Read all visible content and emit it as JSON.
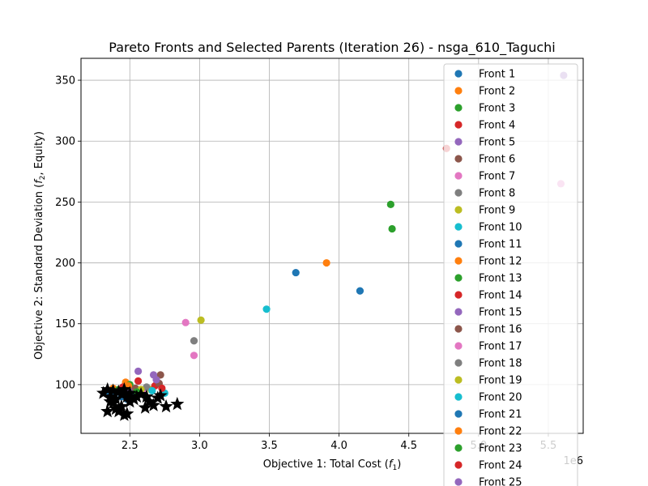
{
  "chart_data": {
    "type": "scatter",
    "title": "Pareto Fronts and Selected Parents (Iteration 26) - nsga_610_Taguchi",
    "xlabel_main": "Objective 1: Total Cost (",
    "xlabel_sym": "f",
    "xlabel_sub": "1",
    "xlabel_end": ")",
    "ylabel_main": "Objective 2: Standard Deviation (",
    "ylabel_sym": "f",
    "ylabel_sub": "2",
    "ylabel_end": ", Equity)",
    "x_offset_label": "1e6",
    "xlim": [
      2.15,
      5.75
    ],
    "ylim": [
      60,
      368
    ],
    "xticks": [
      2.5,
      3.0,
      3.5,
      4.0,
      4.5,
      5.0,
      5.5
    ],
    "xtick_labels": [
      "2.5",
      "3.0",
      "3.5",
      "4.0",
      "4.5",
      "5.0",
      "5.5"
    ],
    "yticks": [
      100,
      150,
      200,
      250,
      300,
      350
    ],
    "ytick_labels": [
      "100",
      "150",
      "200",
      "250",
      "300",
      "350"
    ],
    "grid": true,
    "legend_position": "top-right",
    "series": [
      {
        "name": "Front 1",
        "color": "#1f77b4",
        "points": [
          [
            2.33,
            95
          ],
          [
            2.36,
            92
          ],
          [
            2.4,
            94
          ],
          [
            2.44,
            90
          ],
          [
            2.48,
            88
          ]
        ]
      },
      {
        "name": "Front 2",
        "color": "#ff7f0e",
        "points": [
          [
            2.38,
            97
          ],
          [
            2.47,
            102
          ]
        ]
      },
      {
        "name": "Front 3",
        "color": "#2ca02c",
        "points": [
          [
            2.42,
            96
          ],
          [
            2.5,
            100
          ]
        ]
      },
      {
        "name": "Front 4",
        "color": "#d62728",
        "points": [
          [
            2.45,
            98
          ],
          [
            2.56,
            103
          ]
        ]
      },
      {
        "name": "Front 5",
        "color": "#9467bd",
        "points": [
          [
            2.5,
            95
          ],
          [
            2.56,
            111
          ]
        ]
      },
      {
        "name": "Front 6",
        "color": "#8c564b",
        "points": [
          [
            2.54,
            97
          ],
          [
            2.72,
            108
          ]
        ]
      },
      {
        "name": "Front 7",
        "color": "#e377c2",
        "points": [
          [
            2.6,
            94
          ],
          [
            2.9,
            151
          ]
        ]
      },
      {
        "name": "Front 8",
        "color": "#7f7f7f",
        "points": [
          [
            2.7,
            101
          ],
          [
            2.96,
            136
          ]
        ]
      },
      {
        "name": "Front 9",
        "color": "#bcbd22",
        "points": [
          [
            2.65,
            96
          ],
          [
            3.01,
            153
          ]
        ]
      },
      {
        "name": "Front 10",
        "color": "#17becf",
        "points": [
          [
            2.75,
            93
          ],
          [
            3.48,
            162
          ]
        ]
      },
      {
        "name": "Front 11",
        "color": "#1f77b4",
        "points": [
          [
            3.69,
            192
          ],
          [
            4.15,
            177
          ]
        ]
      },
      {
        "name": "Front 12",
        "color": "#ff7f0e",
        "points": [
          [
            3.91,
            200
          ]
        ]
      },
      {
        "name": "Front 13",
        "color": "#2ca02c",
        "points": [
          [
            4.37,
            248
          ],
          [
            4.38,
            228
          ]
        ]
      },
      {
        "name": "Front 14",
        "color": "#d62728",
        "points": [
          [
            2.68,
            99
          ],
          [
            4.77,
            294
          ]
        ]
      },
      {
        "name": "Front 15",
        "color": "#9467bd",
        "points": [
          [
            2.67,
            108
          ],
          [
            5.61,
            354
          ]
        ]
      },
      {
        "name": "Front 16",
        "color": "#8c564b",
        "points": [
          [
            2.71,
            101
          ]
        ]
      },
      {
        "name": "Front 17",
        "color": "#e377c2",
        "points": [
          [
            2.96,
            124
          ],
          [
            5.59,
            265
          ]
        ]
      },
      {
        "name": "Front 18",
        "color": "#7f7f7f",
        "points": [
          [
            2.62,
            98
          ]
        ]
      },
      {
        "name": "Front 19",
        "color": "#bcbd22",
        "points": [
          [
            2.58,
            96
          ]
        ]
      },
      {
        "name": "Front 20",
        "color": "#17becf",
        "points": [
          [
            2.66,
            95
          ]
        ]
      },
      {
        "name": "Front 21",
        "color": "#1f77b4",
        "points": [
          [
            2.52,
            92
          ]
        ]
      },
      {
        "name": "Front 22",
        "color": "#ff7f0e",
        "points": [
          [
            2.49,
            99
          ]
        ]
      },
      {
        "name": "Front 23",
        "color": "#2ca02c",
        "points": [
          [
            2.55,
            94
          ]
        ]
      },
      {
        "name": "Front 24",
        "color": "#d62728",
        "points": [
          [
            2.73,
            97
          ]
        ]
      },
      {
        "name": "Front 25",
        "color": "#9467bd",
        "points": [
          [
            2.69,
            104
          ]
        ]
      }
    ],
    "selected_parents": {
      "marker": "star",
      "color": "#000000",
      "points": [
        [
          2.31,
          93
        ],
        [
          2.34,
          96
        ],
        [
          2.36,
          90
        ],
        [
          2.38,
          95
        ],
        [
          2.4,
          88
        ],
        [
          2.42,
          94
        ],
        [
          2.44,
          92
        ],
        [
          2.46,
          96
        ],
        [
          2.48,
          90
        ],
        [
          2.5,
          93
        ],
        [
          2.34,
          78
        ],
        [
          2.38,
          85
        ],
        [
          2.4,
          80
        ],
        [
          2.44,
          82
        ],
        [
          2.46,
          75
        ],
        [
          2.48,
          76
        ],
        [
          2.55,
          90
        ],
        [
          2.58,
          92
        ],
        [
          2.61,
          81
        ],
        [
          2.64,
          86
        ],
        [
          2.67,
          83
        ],
        [
          2.7,
          89
        ],
        [
          2.72,
          91
        ],
        [
          2.76,
          82
        ],
        [
          2.84,
          84
        ],
        [
          2.36,
          86
        ],
        [
          2.42,
          78
        ],
        [
          2.5,
          86
        ],
        [
          2.53,
          88
        ],
        [
          2.62,
          90
        ]
      ]
    }
  }
}
